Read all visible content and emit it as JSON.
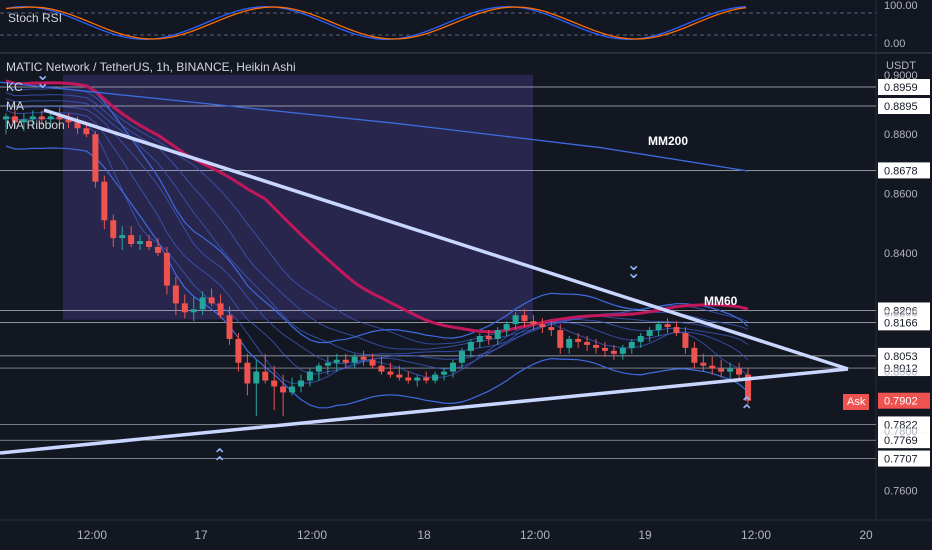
{
  "panel": {
    "stoch_label": "Stoch RSI",
    "symbol_title": "MATIC Network / TetherUS, 1h, BINANCE, Heikin Ashi",
    "indicators": [
      "KC",
      "MA",
      "MA Ribbon"
    ],
    "currency": "USDT",
    "ask_label": "Ask"
  },
  "annotations": {
    "mm200": "MM200",
    "mm60": "MM60"
  },
  "colors": {
    "background": "#131722",
    "up": "#26a69a",
    "down": "#ef5350",
    "trendline": "#c9d6ff",
    "mm60": "#c2185b",
    "ribbon": "#3f5cc7",
    "stoch_k": "#2962ff",
    "stoch_d": "#ff6d00",
    "zone": "#3a3370"
  },
  "chart_data": {
    "type": "candlestick",
    "title": "MATIC Network / TetherUS, 1h, BINANCE, Heikin Ashi",
    "x_ticks": [
      "12:00",
      "17",
      "12:00",
      "18",
      "12:00",
      "19",
      "12:00",
      "20"
    ],
    "y_ticks": [
      0.76,
      0.78,
      0.8,
      0.82,
      0.84,
      0.86,
      0.88,
      0.9
    ],
    "ylim": [
      0.75,
      0.905
    ],
    "price_levels": [
      0.8959,
      0.8895,
      0.8678,
      0.8206,
      0.8166,
      0.8053,
      0.8012,
      0.7822,
      0.7769,
      0.7707
    ],
    "ask_price": 0.7902,
    "stoch_ticks": [
      "100.00",
      "0.00"
    ],
    "candles": [
      [
        0.885,
        0.887,
        0.88,
        0.886
      ],
      [
        0.886,
        0.888,
        0.882,
        0.884
      ],
      [
        0.884,
        0.887,
        0.881,
        0.885
      ],
      [
        0.885,
        0.888,
        0.882,
        0.886
      ],
      [
        0.886,
        0.888,
        0.883,
        0.885
      ],
      [
        0.885,
        0.887,
        0.882,
        0.886
      ],
      [
        0.886,
        0.889,
        0.883,
        0.885
      ],
      [
        0.885,
        0.887,
        0.882,
        0.884
      ],
      [
        0.884,
        0.886,
        0.88,
        0.882
      ],
      [
        0.882,
        0.884,
        0.879,
        0.88
      ],
      [
        0.88,
        0.881,
        0.862,
        0.864
      ],
      [
        0.864,
        0.866,
        0.848,
        0.851
      ],
      [
        0.851,
        0.853,
        0.842,
        0.845
      ],
      [
        0.845,
        0.849,
        0.841,
        0.846
      ],
      [
        0.846,
        0.849,
        0.842,
        0.843
      ],
      [
        0.843,
        0.846,
        0.841,
        0.844
      ],
      [
        0.844,
        0.846,
        0.841,
        0.842
      ],
      [
        0.842,
        0.845,
        0.839,
        0.84
      ],
      [
        0.84,
        0.842,
        0.826,
        0.829
      ],
      [
        0.829,
        0.832,
        0.819,
        0.823
      ],
      [
        0.823,
        0.826,
        0.818,
        0.82
      ],
      [
        0.82,
        0.825,
        0.817,
        0.821
      ],
      [
        0.821,
        0.827,
        0.819,
        0.825
      ],
      [
        0.825,
        0.828,
        0.822,
        0.823
      ],
      [
        0.823,
        0.826,
        0.818,
        0.819
      ],
      [
        0.819,
        0.822,
        0.809,
        0.811
      ],
      [
        0.811,
        0.813,
        0.8,
        0.803
      ],
      [
        0.803,
        0.806,
        0.792,
        0.796
      ],
      [
        0.796,
        0.804,
        0.785,
        0.8
      ],
      [
        0.8,
        0.806,
        0.796,
        0.797
      ],
      [
        0.797,
        0.802,
        0.787,
        0.795
      ],
      [
        0.795,
        0.799,
        0.785,
        0.793
      ],
      [
        0.793,
        0.798,
        0.792,
        0.795
      ],
      [
        0.795,
        0.799,
        0.793,
        0.797
      ],
      [
        0.797,
        0.801,
        0.795,
        0.8
      ],
      [
        0.8,
        0.803,
        0.797,
        0.802
      ],
      [
        0.802,
        0.805,
        0.799,
        0.803
      ],
      [
        0.803,
        0.806,
        0.8,
        0.804
      ],
      [
        0.804,
        0.806,
        0.801,
        0.803
      ],
      [
        0.803,
        0.806,
        0.801,
        0.805
      ],
      [
        0.805,
        0.807,
        0.802,
        0.804
      ],
      [
        0.804,
        0.806,
        0.801,
        0.802
      ],
      [
        0.802,
        0.805,
        0.799,
        0.8
      ],
      [
        0.8,
        0.803,
        0.798,
        0.799
      ],
      [
        0.799,
        0.802,
        0.797,
        0.798
      ],
      [
        0.798,
        0.8,
        0.796,
        0.797
      ],
      [
        0.797,
        0.799,
        0.795,
        0.798
      ],
      [
        0.798,
        0.8,
        0.796,
        0.797
      ],
      [
        0.797,
        0.8,
        0.796,
        0.799
      ],
      [
        0.799,
        0.801,
        0.797,
        0.8
      ],
      [
        0.8,
        0.804,
        0.798,
        0.803
      ],
      [
        0.803,
        0.808,
        0.801,
        0.807
      ],
      [
        0.807,
        0.811,
        0.805,
        0.81
      ],
      [
        0.81,
        0.813,
        0.808,
        0.812
      ],
      [
        0.812,
        0.814,
        0.809,
        0.811
      ],
      [
        0.811,
        0.815,
        0.809,
        0.814
      ],
      [
        0.814,
        0.817,
        0.812,
        0.816
      ],
      [
        0.816,
        0.82,
        0.814,
        0.819
      ],
      [
        0.819,
        0.821,
        0.815,
        0.817
      ],
      [
        0.817,
        0.819,
        0.814,
        0.816
      ],
      [
        0.816,
        0.818,
        0.813,
        0.815
      ],
      [
        0.815,
        0.817,
        0.812,
        0.814
      ],
      [
        0.814,
        0.816,
        0.806,
        0.808
      ],
      [
        0.808,
        0.812,
        0.806,
        0.811
      ],
      [
        0.811,
        0.813,
        0.808,
        0.81
      ],
      [
        0.81,
        0.812,
        0.807,
        0.809
      ],
      [
        0.809,
        0.811,
        0.806,
        0.808
      ],
      [
        0.808,
        0.81,
        0.805,
        0.807
      ],
      [
        0.807,
        0.809,
        0.804,
        0.806
      ],
      [
        0.806,
        0.809,
        0.804,
        0.808
      ],
      [
        0.808,
        0.811,
        0.806,
        0.81
      ],
      [
        0.81,
        0.813,
        0.808,
        0.812
      ],
      [
        0.812,
        0.815,
        0.81,
        0.814
      ],
      [
        0.814,
        0.817,
        0.812,
        0.816
      ],
      [
        0.816,
        0.818,
        0.813,
        0.815
      ],
      [
        0.815,
        0.817,
        0.812,
        0.813
      ],
      [
        0.813,
        0.815,
        0.806,
        0.808
      ],
      [
        0.808,
        0.81,
        0.801,
        0.803
      ],
      [
        0.803,
        0.806,
        0.8,
        0.802
      ],
      [
        0.802,
        0.805,
        0.799,
        0.801
      ],
      [
        0.801,
        0.804,
        0.798,
        0.8
      ],
      [
        0.8,
        0.803,
        0.797,
        0.801
      ],
      [
        0.801,
        0.803,
        0.797,
        0.799
      ],
      [
        0.799,
        0.801,
        0.789,
        0.7902
      ]
    ]
  }
}
